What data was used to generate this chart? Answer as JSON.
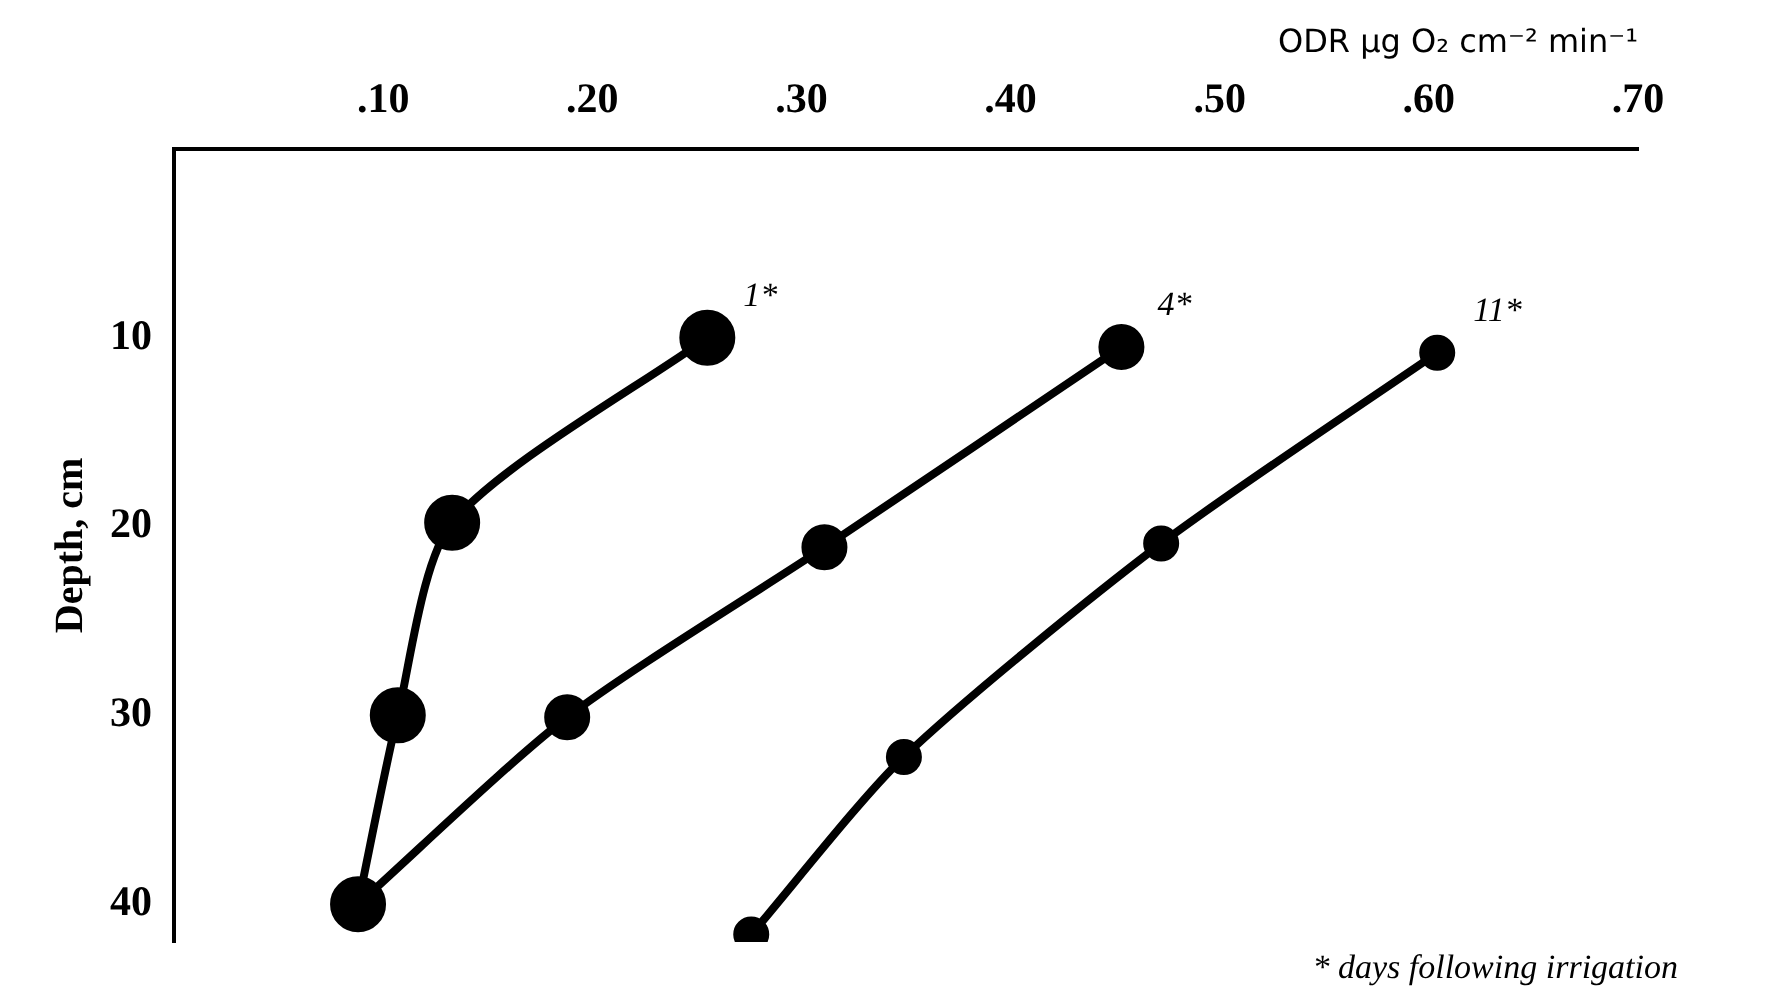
{
  "chart_data": {
    "type": "line",
    "xlabel": "ODR µg O₂ cm⁻² min⁻¹",
    "ylabel": "Depth, cm",
    "annotations": [
      "* days following irrigation"
    ],
    "xlim": [
      0,
      0.7
    ],
    "xticks": [
      {
        "value": 0.1,
        "label": ".10"
      },
      {
        "value": 0.2,
        "label": ".20"
      },
      {
        "value": 0.3,
        "label": ".30"
      },
      {
        "value": 0.4,
        "label": ".40"
      },
      {
        "value": 0.5,
        "label": ".50"
      },
      {
        "value": 0.6,
        "label": ".60"
      },
      {
        "value": 0.7,
        "label": ".70"
      }
    ],
    "ylim": [
      42,
      0
    ],
    "yticks": [
      10,
      20,
      30,
      40
    ],
    "grid": false,
    "legend": false,
    "marker": "circle",
    "line_style": "solid",
    "series": [
      {
        "name": "1*",
        "color": "#000000",
        "x": [
          0.255,
          0.133,
          0.107,
          0.088
        ],
        "values": [
          10,
          19.8,
          30,
          40
        ]
      },
      {
        "name": "4*",
        "color": "#000000",
        "x": [
          0.453,
          0.311,
          0.188,
          0.088
        ],
        "values": [
          10.5,
          21.1,
          30.1,
          40
        ]
      },
      {
        "name": "11*",
        "color": "#000000",
        "x": [
          0.604,
          0.472,
          0.349,
          0.276
        ],
        "values": [
          10.8,
          20.9,
          32.2,
          41.6
        ]
      }
    ]
  }
}
